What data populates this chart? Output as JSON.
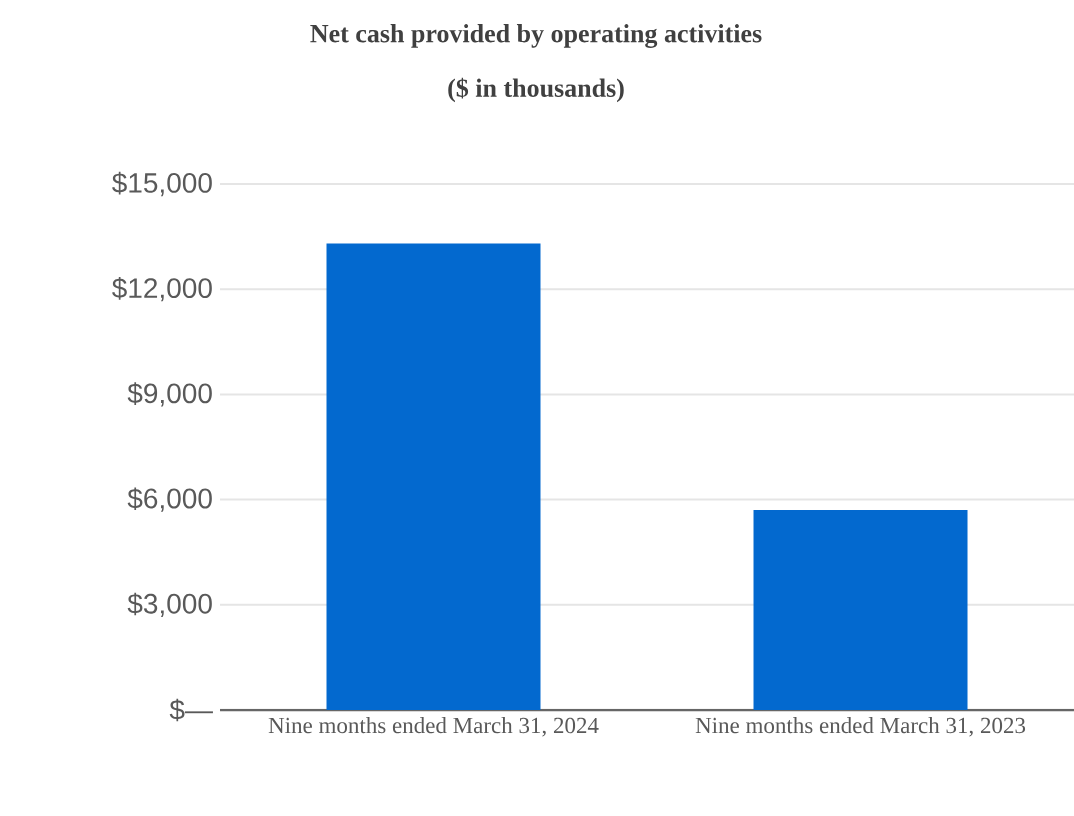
{
  "chart_data": {
    "type": "bar",
    "title": "Net cash provided by operating activities",
    "subtitle": "($ in thousands)",
    "categories": [
      "Nine months ended March 31, 2024",
      "Nine months ended March 31, 2023"
    ],
    "values": [
      13300,
      5700
    ],
    "color": "#0369cf",
    "ylim": [
      0,
      15000
    ],
    "yticks": [
      {
        "value": 0,
        "label": "$—"
      },
      {
        "value": 3000,
        "label": "$3,000"
      },
      {
        "value": 6000,
        "label": "$6,000"
      },
      {
        "value": 9000,
        "label": "$9,000"
      },
      {
        "value": 12000,
        "label": "$12,000"
      },
      {
        "value": 15000,
        "label": "$15,000"
      }
    ],
    "grid": "y"
  }
}
